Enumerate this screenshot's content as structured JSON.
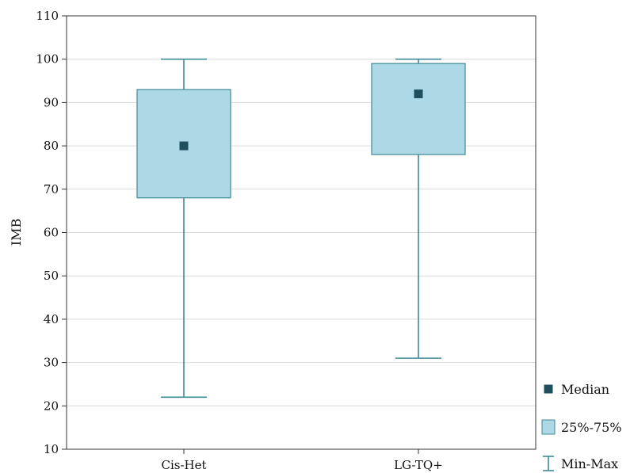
{
  "chart_data": {
    "type": "boxplot",
    "title": "",
    "xlabel": "",
    "ylabel": "IMB",
    "ylim": [
      10,
      110
    ],
    "yticks": [
      10,
      20,
      30,
      40,
      50,
      60,
      70,
      80,
      90,
      100,
      110
    ],
    "grid": true,
    "legend_position": "right",
    "categories": [
      "Cis-Het",
      "LG-TQ+"
    ],
    "groups": [
      {
        "category": "Cis-Het",
        "min": 22,
        "q1": 68,
        "median": 80,
        "q3": 93,
        "max": 100
      },
      {
        "category": "LG-TQ+",
        "min": 31,
        "q1": 78,
        "median": 92,
        "q3": 99,
        "max": 100
      }
    ],
    "legend": [
      {
        "key": "median",
        "label": "Median"
      },
      {
        "key": "box",
        "label": "25%-75%"
      },
      {
        "key": "whisker",
        "label": "Min-Max"
      }
    ],
    "colors": {
      "box_fill": "#add8e6",
      "line": "#3f8a94",
      "median_marker": "#1f4e5c",
      "grid": "#d9d9d9",
      "frame": "#333333"
    }
  }
}
